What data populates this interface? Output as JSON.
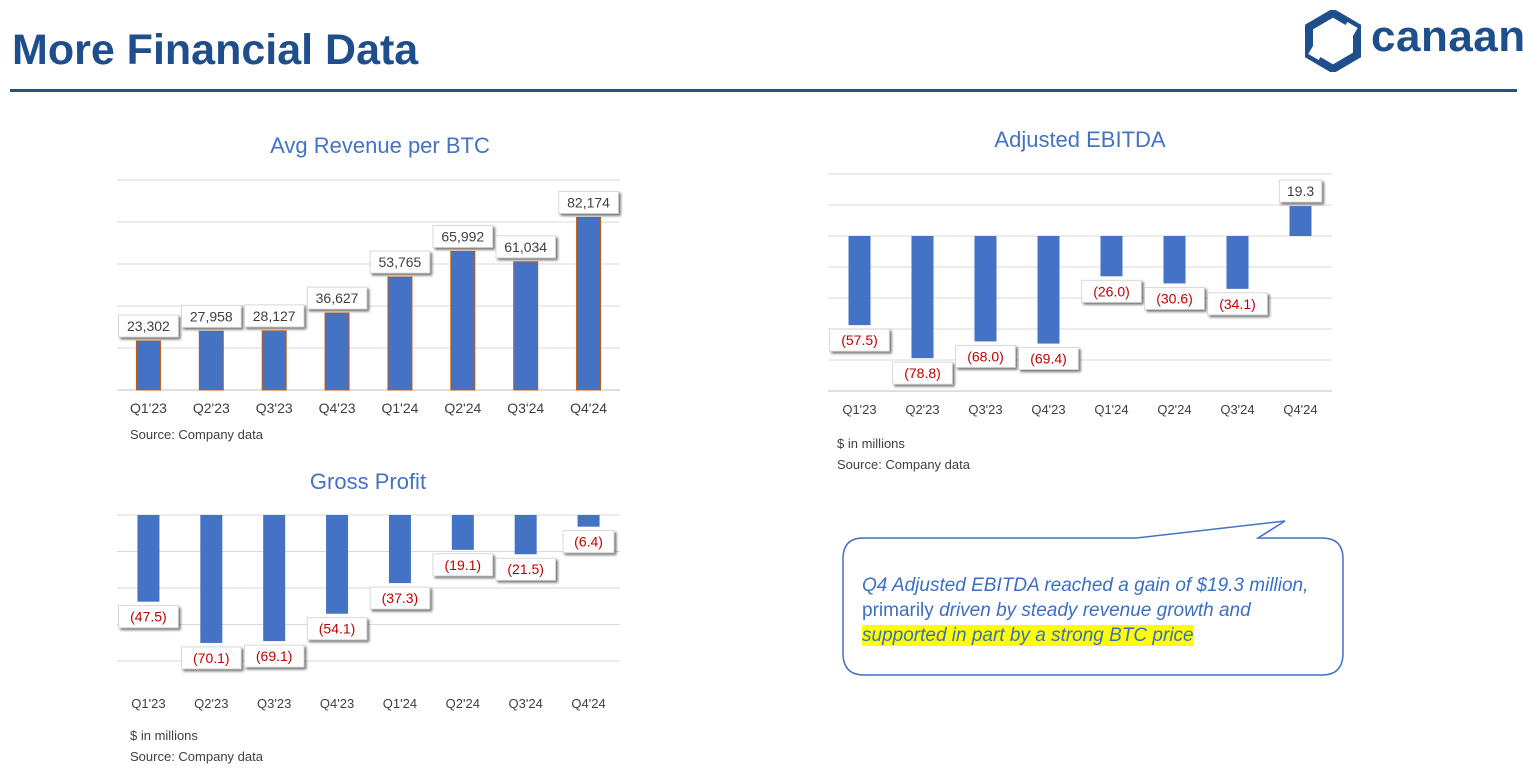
{
  "header": {
    "title": "More Financial Data",
    "logo_text": "canaan"
  },
  "colors": {
    "bar": "#4472c4",
    "negative_label": "#c00000",
    "positive_label": "#404040",
    "title": "#1f4e8c",
    "accent": "#4472c4"
  },
  "charts": {
    "revenue": {
      "title": "Avg Revenue per BTC",
      "source": "Source: Company data"
    },
    "gross": {
      "title": "Gross Profit",
      "unit": "$ in millions",
      "source": "Source: Company data"
    },
    "ebitda": {
      "title": "Adjusted EBITDA",
      "unit": "$ in millions",
      "source": "Source: Company data"
    }
  },
  "callout": {
    "part1": "Q4 Adjusted EBITDA reached a gain of $19.3 million,",
    "part2": "primarily ",
    "part3": "driven by steady revenue growth and",
    "part4": "supported in part by a strong BTC price"
  },
  "chart_data": [
    {
      "id": "revenue",
      "type": "bar",
      "title": "Avg Revenue per BTC",
      "categories": [
        "Q1'23",
        "Q2'23",
        "Q3'23",
        "Q4'23",
        "Q1'24",
        "Q2'24",
        "Q3'24",
        "Q4'24"
      ],
      "values": [
        23302,
        27958,
        28127,
        36627,
        53765,
        65992,
        61034,
        82174
      ],
      "labels": [
        "23,302",
        "27,958",
        "28,127",
        "36,627",
        "53,765",
        "65,992",
        "61,034",
        "82,174"
      ],
      "ylim": [
        0,
        100000
      ],
      "grid": true
    },
    {
      "id": "gross",
      "type": "bar",
      "title": "Gross Profit",
      "categories": [
        "Q1'23",
        "Q2'23",
        "Q3'23",
        "Q4'23",
        "Q1'24",
        "Q2'24",
        "Q3'24",
        "Q4'24"
      ],
      "values": [
        -47.5,
        -70.1,
        -69.1,
        -54.1,
        -37.3,
        -19.1,
        -21.5,
        -6.4
      ],
      "labels": [
        "(47.5)",
        "(70.1)",
        "(69.1)",
        "(54.1)",
        "(37.3)",
        "(19.1)",
        "(21.5)",
        "(6.4)"
      ],
      "ylim": [
        -80,
        0
      ],
      "grid": true
    },
    {
      "id": "ebitda",
      "type": "bar",
      "title": "Adjusted EBITDA",
      "categories": [
        "Q1'23",
        "Q2'23",
        "Q3'23",
        "Q4'23",
        "Q1'24",
        "Q2'24",
        "Q3'24",
        "Q4'24"
      ],
      "values": [
        -57.5,
        -78.8,
        -68.0,
        -69.4,
        -26.0,
        -30.6,
        -34.1,
        19.3
      ],
      "labels": [
        "(57.5)",
        "(78.8)",
        "(68.0)",
        "(69.4)",
        "(26.0)",
        "(30.6)",
        "(34.1)",
        "19.3"
      ],
      "ylim": [
        -100,
        40
      ],
      "grid": true
    }
  ]
}
